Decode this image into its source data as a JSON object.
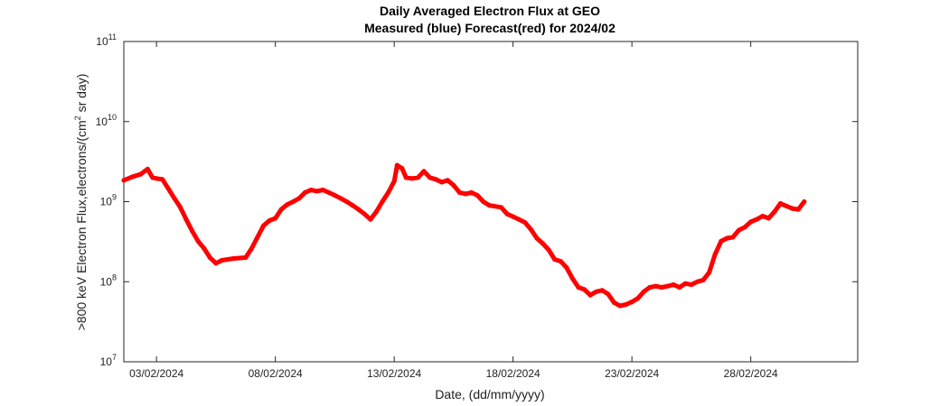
{
  "chart_data": {
    "type": "scatter",
    "title": "Daily Averaged Electron Flux at GEO",
    "subtitle": "Measured (blue) Forecast(red) for 2024/02",
    "xlabel": "Date, (dd/mm/yyyy)",
    "ylabel": ">800 keV Electron Flux,electrons/(cm² sr day)",
    "ylabel_parts": {
      "before": ">800 keV Electron Flux,electrons/(cm",
      "sup": "2",
      "after": " sr day)"
    },
    "y_scale": "log",
    "ylim": [
      10000000,
      100000000000
    ],
    "xlim": [
      "2024-02-01T15:00",
      "2024-03-03T12:00"
    ],
    "grid": false,
    "y_ticks": [
      {
        "base": "10",
        "exp": "7",
        "value": 10000000
      },
      {
        "base": "10",
        "exp": "8",
        "value": 100000000
      },
      {
        "base": "10",
        "exp": "9",
        "value": 1000000000
      },
      {
        "base": "10",
        "exp": "10",
        "value": 10000000000
      },
      {
        "base": "10",
        "exp": "11",
        "value": 100000000000
      }
    ],
    "x_ticks": [
      {
        "label": "03/02/2024",
        "date": "2024-02-03"
      },
      {
        "label": "08/02/2024",
        "date": "2024-02-08"
      },
      {
        "label": "13/02/2024",
        "date": "2024-02-13"
      },
      {
        "label": "18/02/2024",
        "date": "2024-02-18"
      },
      {
        "label": "23/02/2024",
        "date": "2024-02-23"
      },
      {
        "label": "28/02/2024",
        "date": "2024-02-28"
      }
    ],
    "series": [
      {
        "color": "#ff0000",
        "points": [
          [
            "2024-02-01T15:00",
            1850000000.0
          ],
          [
            "2024-02-02T00:00",
            2050000000.0
          ],
          [
            "2024-02-02T08:00",
            2200000000.0
          ],
          [
            "2024-02-02T15:00",
            2550000000.0
          ],
          [
            "2024-02-02T20:00",
            2000000000.0
          ],
          [
            "2024-02-03T00:00",
            1950000000.0
          ],
          [
            "2024-02-03T06:00",
            1900000000.0
          ],
          [
            "2024-02-03T12:00",
            1450000000.0
          ],
          [
            "2024-02-03T18:00",
            1100000000.0
          ],
          [
            "2024-02-04T00:00",
            850000000.0
          ],
          [
            "2024-02-04T06:00",
            600000000.0
          ],
          [
            "2024-02-04T12:00",
            430000000.0
          ],
          [
            "2024-02-04T18:00",
            320000000.0
          ],
          [
            "2024-02-05T00:00",
            260000000.0
          ],
          [
            "2024-02-05T06:00",
            200000000.0
          ],
          [
            "2024-02-05T12:00",
            170000000.0
          ],
          [
            "2024-02-05T18:00",
            185000000.0
          ],
          [
            "2024-02-06T06:00",
            195000000.0
          ],
          [
            "2024-02-06T18:00",
            200000000.0
          ],
          [
            "2024-02-07T00:00",
            260000000.0
          ],
          [
            "2024-02-07T06:00",
            360000000.0
          ],
          [
            "2024-02-07T12:00",
            500000000.0
          ],
          [
            "2024-02-07T18:00",
            580000000.0
          ],
          [
            "2024-02-08T00:00",
            620000000.0
          ],
          [
            "2024-02-08T06:00",
            800000000.0
          ],
          [
            "2024-02-08T12:00",
            920000000.0
          ],
          [
            "2024-02-08T18:00",
            1000000000.0
          ],
          [
            "2024-02-09T00:00",
            1100000000.0
          ],
          [
            "2024-02-09T06:00",
            1300000000.0
          ],
          [
            "2024-02-09T12:00",
            1400000000.0
          ],
          [
            "2024-02-09T18:00",
            1350000000.0
          ],
          [
            "2024-02-10T00:00",
            1400000000.0
          ],
          [
            "2024-02-10T06:00",
            1300000000.0
          ],
          [
            "2024-02-10T12:00",
            1200000000.0
          ],
          [
            "2024-02-10T18:00",
            1100000000.0
          ],
          [
            "2024-02-11T00:00",
            1000000000.0
          ],
          [
            "2024-02-11T06:00",
            900000000.0
          ],
          [
            "2024-02-11T12:00",
            800000000.0
          ],
          [
            "2024-02-11T18:00",
            700000000.0
          ],
          [
            "2024-02-12T00:00",
            600000000.0
          ],
          [
            "2024-02-12T06:00",
            750000000.0
          ],
          [
            "2024-02-12T12:00",
            1000000000.0
          ],
          [
            "2024-02-12T18:00",
            1300000000.0
          ],
          [
            "2024-02-13T00:00",
            1800000000.0
          ],
          [
            "2024-02-13T03:00",
            2850000000.0
          ],
          [
            "2024-02-13T08:00",
            2600000000.0
          ],
          [
            "2024-02-13T12:00",
            2000000000.0
          ],
          [
            "2024-02-13T18:00",
            1950000000.0
          ],
          [
            "2024-02-14T00:00",
            2000000000.0
          ],
          [
            "2024-02-14T06:00",
            2400000000.0
          ],
          [
            "2024-02-14T12:00",
            2000000000.0
          ],
          [
            "2024-02-14T18:00",
            1900000000.0
          ],
          [
            "2024-02-15T00:00",
            1750000000.0
          ],
          [
            "2024-02-15T06:00",
            1850000000.0
          ],
          [
            "2024-02-15T12:00",
            1600000000.0
          ],
          [
            "2024-02-15T18:00",
            1300000000.0
          ],
          [
            "2024-02-16T00:00",
            1250000000.0
          ],
          [
            "2024-02-16T06:00",
            1300000000.0
          ],
          [
            "2024-02-16T12:00",
            1200000000.0
          ],
          [
            "2024-02-16T18:00",
            1000000000.0
          ],
          [
            "2024-02-17T00:00",
            900000000.0
          ],
          [
            "2024-02-17T12:00",
            850000000.0
          ],
          [
            "2024-02-17T18:00",
            700000000.0
          ],
          [
            "2024-02-18T00:00",
            650000000.0
          ],
          [
            "2024-02-18T06:00",
            600000000.0
          ],
          [
            "2024-02-18T12:00",
            550000000.0
          ],
          [
            "2024-02-18T18:00",
            450000000.0
          ],
          [
            "2024-02-19T00:00",
            350000000.0
          ],
          [
            "2024-02-19T06:00",
            300000000.0
          ],
          [
            "2024-02-19T12:00",
            250000000.0
          ],
          [
            "2024-02-19T18:00",
            190000000.0
          ],
          [
            "2024-02-20T00:00",
            180000000.0
          ],
          [
            "2024-02-20T06:00",
            150000000.0
          ],
          [
            "2024-02-20T12:00",
            110000000.0
          ],
          [
            "2024-02-20T18:00",
            85000000.0
          ],
          [
            "2024-02-21T00:00",
            80000000.0
          ],
          [
            "2024-02-21T06:00",
            68000000.0
          ],
          [
            "2024-02-21T12:00",
            75000000.0
          ],
          [
            "2024-02-21T18:00",
            78000000.0
          ],
          [
            "2024-02-22T00:00",
            70000000.0
          ],
          [
            "2024-02-22T06:00",
            55000000.0
          ],
          [
            "2024-02-22T12:00",
            50000000.0
          ],
          [
            "2024-02-22T18:00",
            52000000.0
          ],
          [
            "2024-02-23T00:00",
            56000000.0
          ],
          [
            "2024-02-23T06:00",
            62000000.0
          ],
          [
            "2024-02-23T12:00",
            75000000.0
          ],
          [
            "2024-02-23T18:00",
            85000000.0
          ],
          [
            "2024-02-24T00:00",
            88000000.0
          ],
          [
            "2024-02-24T06:00",
            85000000.0
          ],
          [
            "2024-02-24T12:00",
            88000000.0
          ],
          [
            "2024-02-24T18:00",
            92000000.0
          ],
          [
            "2024-02-25T00:00",
            85000000.0
          ],
          [
            "2024-02-25T06:00",
            95000000.0
          ],
          [
            "2024-02-25T12:00",
            92000000.0
          ],
          [
            "2024-02-25T18:00",
            100000000.0
          ],
          [
            "2024-02-26T00:00",
            105000000.0
          ],
          [
            "2024-02-26T06:00",
            130000000.0
          ],
          [
            "2024-02-26T12:00",
            220000000.0
          ],
          [
            "2024-02-26T18:00",
            320000000.0
          ],
          [
            "2024-02-27T00:00",
            350000000.0
          ],
          [
            "2024-02-27T06:00",
            360000000.0
          ],
          [
            "2024-02-27T12:00",
            440000000.0
          ],
          [
            "2024-02-27T18:00",
            480000000.0
          ],
          [
            "2024-02-28T00:00",
            560000000.0
          ],
          [
            "2024-02-28T06:00",
            600000000.0
          ],
          [
            "2024-02-28T12:00",
            660000000.0
          ],
          [
            "2024-02-28T18:00",
            620000000.0
          ],
          [
            "2024-02-29T00:00",
            750000000.0
          ],
          [
            "2024-02-29T06:00",
            950000000.0
          ],
          [
            "2024-02-29T12:00",
            880000000.0
          ],
          [
            "2024-02-29T18:00",
            820000000.0
          ],
          [
            "2024-03-01T00:00",
            800000000.0
          ],
          [
            "2024-03-01T06:00",
            1000000000.0
          ]
        ]
      }
    ]
  }
}
